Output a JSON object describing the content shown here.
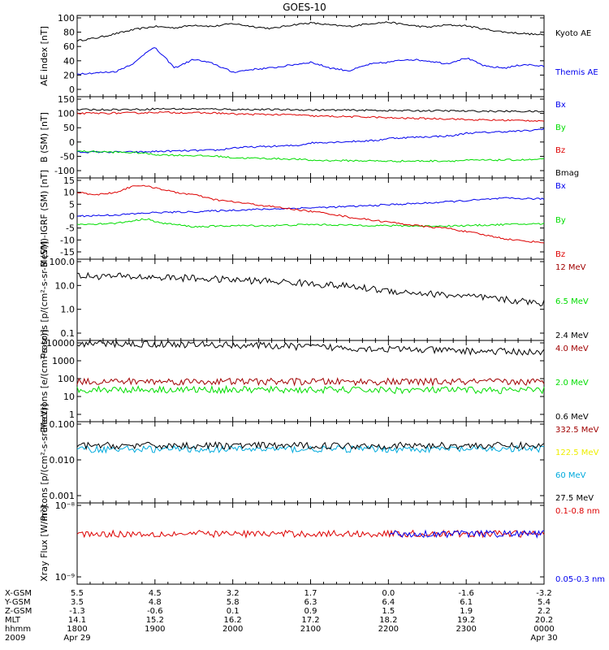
{
  "title": "GOES-10",
  "colors": {
    "black": "#000000",
    "blue": "#0000ee",
    "red": "#dd0000",
    "green": "#00dd00",
    "darkred": "#a00000",
    "yellow": "#eeee00",
    "cyan": "#00aadd"
  },
  "chart_data": [
    {
      "type": "line",
      "ylabel": "AE index [nT]",
      "ylim": [
        0,
        100
      ],
      "yticks": [
        "0",
        "20",
        "40",
        "60",
        "80",
        "100"
      ],
      "x_range": [
        1800,
        2400
      ],
      "series": [
        {
          "name": "Kyoto AE",
          "color": "black",
          "x": [
            1800,
            1815,
            1830,
            1845,
            1900,
            1915,
            1930,
            1945,
            2000,
            2015,
            2030,
            2045,
            2100,
            2115,
            2130,
            2145,
            2200,
            2215,
            2230,
            2245,
            2300,
            2315,
            2330,
            2345,
            2400
          ],
          "values": [
            68,
            72,
            78,
            84,
            88,
            86,
            90,
            88,
            92,
            88,
            85,
            90,
            93,
            90,
            88,
            92,
            94,
            90,
            87,
            90,
            89,
            84,
            80,
            78,
            76
          ]
        },
        {
          "name": "Themis AE",
          "color": "blue",
          "x": [
            1800,
            1815,
            1830,
            1845,
            1855,
            1900,
            1910,
            1915,
            1930,
            1945,
            2000,
            2015,
            2030,
            2045,
            2100,
            2115,
            2130,
            2145,
            2200,
            2215,
            2230,
            2245,
            2300,
            2315,
            2330,
            2345,
            2400
          ],
          "values": [
            22,
            23,
            25,
            38,
            55,
            58,
            40,
            30,
            42,
            36,
            24,
            28,
            30,
            34,
            38,
            30,
            26,
            35,
            38,
            42,
            40,
            36,
            44,
            32,
            30,
            35,
            32
          ]
        }
      ]
    },
    {
      "type": "line",
      "ylabel": "B (SM) [nT]",
      "ylim": [
        -100,
        150
      ],
      "yticks": [
        "-100",
        "-50",
        "0",
        "50",
        "100",
        "150"
      ],
      "x_range": [
        1800,
        2400
      ],
      "series": [
        {
          "name": "Bx",
          "color": "blue",
          "x": [
            1800,
            1850,
            1900,
            1950,
            2000,
            2050,
            2100,
            2150,
            2200,
            2250,
            2300,
            2350,
            2400
          ],
          "values": [
            -35,
            -35,
            -33,
            -28,
            -20,
            -12,
            -3,
            5,
            13,
            22,
            31,
            40,
            47
          ]
        },
        {
          "name": "By",
          "color": "green",
          "x": [
            1800,
            1850,
            1900,
            1950,
            2000,
            2050,
            2100,
            2150,
            2200,
            2250,
            2300,
            2350,
            2400
          ],
          "values": [
            -32,
            -38,
            -44,
            -50,
            -55,
            -60,
            -64,
            -66,
            -67,
            -66,
            -64,
            -62,
            -60
          ]
        },
        {
          "name": "Bz",
          "color": "red",
          "x": [
            1800,
            1850,
            1900,
            1950,
            2000,
            2050,
            2100,
            2150,
            2200,
            2250,
            2300,
            2350,
            2400
          ],
          "values": [
            100,
            102,
            104,
            101,
            98,
            95,
            91,
            87,
            84,
            81,
            78,
            75,
            74
          ]
        },
        {
          "name": "Bmag",
          "color": "black",
          "x": [
            1800,
            1850,
            1900,
            1950,
            2000,
            2050,
            2100,
            2150,
            2200,
            2250,
            2300,
            2350,
            2400
          ],
          "values": [
            113,
            114,
            116,
            115,
            114,
            113,
            112,
            111,
            110,
            109,
            108,
            107,
            106
          ]
        }
      ]
    },
    {
      "type": "line",
      "ylabel": "B (SM)-IGRF (SM) [nT]",
      "ylim": [
        -15,
        15
      ],
      "yticks": [
        "-15",
        "-10",
        "-5",
        "0",
        "5",
        "10",
        "15"
      ],
      "x_range": [
        1800,
        2400
      ],
      "series": [
        {
          "name": "Bx",
          "color": "blue",
          "x": [
            1800,
            1830,
            1900,
            1930,
            2000,
            2030,
            2100,
            2130,
            2200,
            2230,
            2300,
            2330,
            2400
          ],
          "values": [
            0,
            0.5,
            1.5,
            1.8,
            2.5,
            3,
            3.5,
            4,
            4.8,
            5.5,
            6.5,
            7.5,
            7.2
          ]
        },
        {
          "name": "By",
          "color": "green",
          "x": [
            1800,
            1830,
            1855,
            1900,
            1930,
            2000,
            2030,
            2100,
            2130,
            2200,
            2230,
            2300,
            2330,
            2400
          ],
          "values": [
            -3.5,
            -3,
            -1,
            -2.5,
            -4.5,
            -4,
            -4,
            -3.5,
            -3.8,
            -4,
            -4.2,
            -4,
            -3.5,
            -3.2
          ]
        },
        {
          "name": "Bz",
          "color": "red",
          "x": [
            1800,
            1815,
            1830,
            1845,
            1900,
            1915,
            1930,
            1945,
            2000,
            2015,
            2030,
            2045,
            2100,
            2115,
            2130,
            2145,
            2200,
            2215,
            2230,
            2245,
            2300,
            2315,
            2330,
            2345,
            2400
          ],
          "values": [
            10,
            9,
            10,
            13,
            12,
            10,
            9,
            7,
            6,
            5,
            4,
            3,
            2,
            1,
            -0.5,
            -1.5,
            -2.5,
            -3.5,
            -4.5,
            -5,
            -6.5,
            -8,
            -9.5,
            -10.5,
            -11
          ]
        }
      ]
    },
    {
      "type": "line",
      "ylabel": "Protons [p/(cm²-s-sr-MeV)]",
      "yscale": "log",
      "ylim": [
        0.1,
        100
      ],
      "yticks": [
        "0.1",
        "1.0",
        "10.0",
        "100.0"
      ],
      "x_range": [
        1800,
        2400
      ],
      "series": [
        {
          "name": "12 MeV",
          "color": "darkred",
          "x": [],
          "values": []
        },
        {
          "name": "6.5 MeV",
          "color": "green",
          "x": [],
          "values": []
        },
        {
          "name": "2.4 MeV",
          "color": "black",
          "x": [
            1800,
            1830,
            1900,
            1930,
            2000,
            2030,
            2100,
            2130,
            2200,
            2230,
            2300,
            2330,
            2400
          ],
          "values": [
            25,
            24,
            22,
            20,
            17,
            15,
            12,
            9,
            6,
            4.5,
            3.5,
            2.5,
            1.8
          ]
        }
      ]
    },
    {
      "type": "line",
      "ylabel": "Electrons [e/(cm²-s-sr)]",
      "yscale": "log",
      "ylim": [
        1,
        10000
      ],
      "yticks": [
        "1",
        "10",
        "100",
        "1000",
        "10000"
      ],
      "x_range": [
        1800,
        2400
      ],
      "series": [
        {
          "name": "4.0 MeV",
          "color": "darkred",
          "x": [
            1800,
            2400
          ],
          "values": [
            70,
            65
          ]
        },
        {
          "name": "2.0 MeV",
          "color": "green",
          "x": [
            1800,
            2400
          ],
          "values": [
            25,
            22
          ]
        },
        {
          "name": "0.6 MeV",
          "color": "black",
          "x": [
            1800,
            1900,
            2000,
            2100,
            2200,
            2300,
            2400
          ],
          "values": [
            9000,
            8500,
            7500,
            6000,
            4500,
            3500,
            3000
          ]
        }
      ]
    },
    {
      "type": "line",
      "ylabel": "Protons [p/(cm²-s-sr-MeV)]",
      "yscale": "log",
      "ylim": [
        0.001,
        0.1
      ],
      "yticks": [
        "0.001",
        "0.010",
        "0.100"
      ],
      "x_range": [
        1800,
        2400
      ],
      "series": [
        {
          "name": "332.5 MeV",
          "color": "darkred",
          "x": [],
          "values": []
        },
        {
          "name": "122.5 MeV",
          "color": "yellow",
          "x": [],
          "values": []
        },
        {
          "name": "60 MeV",
          "color": "cyan",
          "x": [
            1800,
            2400
          ],
          "values": [
            0.02,
            0.02
          ]
        },
        {
          "name": "27.5 MeV",
          "color": "black",
          "x": [
            1800,
            2400
          ],
          "values": [
            0.025,
            0.025
          ]
        }
      ]
    },
    {
      "type": "line",
      "ylabel": "Xray Flux [W/m²]",
      "yscale": "log",
      "ylim": [
        1e-09,
        1e-08
      ],
      "yticks": [
        "10⁻⁹",
        "10⁻⁸"
      ],
      "x_range": [
        1800,
        2400
      ],
      "series": [
        {
          "name": "0.1-0.8 nm",
          "color": "red",
          "x": [
            1800,
            2400
          ],
          "values": [
            4e-09,
            4e-09
          ]
        },
        {
          "name": "0.05-0.3 nm",
          "color": "blue",
          "x": [
            2200,
            2400
          ],
          "values": [
            4e-09,
            4e-09
          ]
        }
      ]
    }
  ],
  "ephemeris": {
    "row_labels": [
      "X-GSM",
      "Y-GSM",
      "Z-GSM",
      "MLT",
      "hhmm",
      "2009"
    ],
    "columns": [
      {
        "X-GSM": "5.5",
        "Y-GSM": "3.5",
        "Z-GSM": "-1.3",
        "MLT": "14.1",
        "hhmm": "1800",
        "date": "Apr 29"
      },
      {
        "X-GSM": "4.5",
        "Y-GSM": "4.8",
        "Z-GSM": "-0.6",
        "MLT": "15.2",
        "hhmm": "1900",
        "date": ""
      },
      {
        "X-GSM": "3.2",
        "Y-GSM": "5.8",
        "Z-GSM": "0.1",
        "MLT": "16.2",
        "hhmm": "2000",
        "date": ""
      },
      {
        "X-GSM": "1.7",
        "Y-GSM": "6.3",
        "Z-GSM": "0.9",
        "MLT": "17.2",
        "hhmm": "2100",
        "date": ""
      },
      {
        "X-GSM": "0.0",
        "Y-GSM": "6.4",
        "Z-GSM": "1.5",
        "MLT": "18.2",
        "hhmm": "2200",
        "date": ""
      },
      {
        "X-GSM": "-1.6",
        "Y-GSM": "6.1",
        "Z-GSM": "1.9",
        "MLT": "19.2",
        "hhmm": "2300",
        "date": ""
      },
      {
        "X-GSM": "-3.2",
        "Y-GSM": "5.4",
        "Z-GSM": "2.2",
        "MLT": "20.2",
        "hhmm": "0000",
        "date": "Apr 30"
      }
    ]
  }
}
